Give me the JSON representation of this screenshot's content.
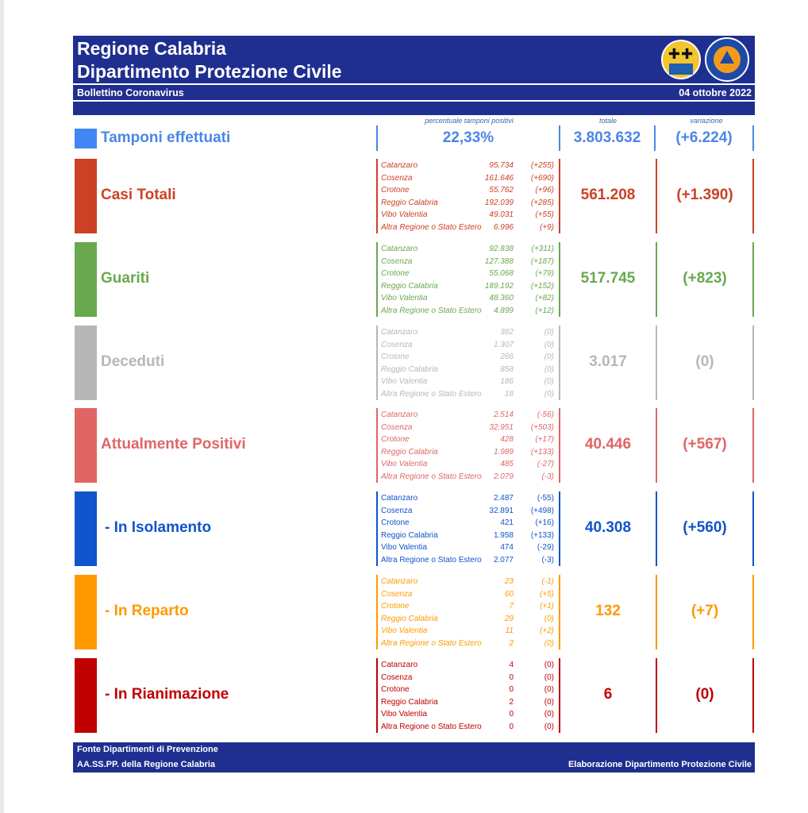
{
  "header": {
    "title_line1": "Regione Calabria",
    "title_line2": "Dipartimento Protezione Civile",
    "bulletin": "Bollettino Coronavirus",
    "date": "04 ottobre 2022"
  },
  "columns": {
    "perc": "percentuale tamponi positivi",
    "total": "totale",
    "variation": "variazione"
  },
  "tamponi": {
    "label": "Tamponi effettuati",
    "percent": "22,33%",
    "total": "3.803.632",
    "variation": "(+6.224)",
    "color": "#4a86e8"
  },
  "categories": [
    {
      "label": "Casi Totali",
      "total": "561.208",
      "variation": "(+1.390)",
      "color": "#cc4125",
      "provinces": [
        {
          "name": "Catanzaro",
          "value": "95.734",
          "delta": "(+255)"
        },
        {
          "name": "Cosenza",
          "value": "161.646",
          "delta": "(+690)"
        },
        {
          "name": "Crotone",
          "value": "55.762",
          "delta": "(+96)"
        },
        {
          "name": "Reggio Calabria",
          "value": "192.039",
          "delta": "(+285)"
        },
        {
          "name": "Vibo Valentia",
          "value": "49.031",
          "delta": "(+55)"
        },
        {
          "name": "Altra Regione o Stato Estero",
          "value": "6.996",
          "delta": "(+9)"
        }
      ]
    },
    {
      "label": "Guariti",
      "total": "517.745",
      "variation": "(+823)",
      "color": "#6aa84f",
      "provinces": [
        {
          "name": "Catanzaro",
          "value": "92.838",
          "delta": "(+311)"
        },
        {
          "name": "Cosenza",
          "value": "127.388",
          "delta": "(+187)"
        },
        {
          "name": "Crotone",
          "value": "55.068",
          "delta": "(+79)"
        },
        {
          "name": "Reggio Calabria",
          "value": "189.192",
          "delta": "(+152)"
        },
        {
          "name": "Vibo Valentia",
          "value": "48.360",
          "delta": "(+82)"
        },
        {
          "name": "Altra Regione o Stato Estero",
          "value": "4.899",
          "delta": "(+12)"
        }
      ]
    },
    {
      "label": "Deceduti",
      "total": "3.017",
      "variation": "(0)",
      "color": "#b7b7b7",
      "provinces": [
        {
          "name": "Catanzaro",
          "value": "382",
          "delta": "(0)"
        },
        {
          "name": "Cosenza",
          "value": "1.307",
          "delta": "(0)"
        },
        {
          "name": "Crotone",
          "value": "266",
          "delta": "(0)"
        },
        {
          "name": "Reggio Calabria",
          "value": "858",
          "delta": "(0)"
        },
        {
          "name": "Vibo Valentia",
          "value": "186",
          "delta": "(0)"
        },
        {
          "name": "Altra Regione o Stato Estero",
          "value": "18",
          "delta": "(0)"
        }
      ]
    },
    {
      "label": "Attualmente Positivi",
      "total": "40.446",
      "variation": "(+567)",
      "color": "#e06666",
      "provinces": [
        {
          "name": "Catanzaro",
          "value": "2.514",
          "delta": "(-56)"
        },
        {
          "name": "Cosenza",
          "value": "32.951",
          "delta": "(+503)"
        },
        {
          "name": "Crotone",
          "value": "428",
          "delta": "(+17)"
        },
        {
          "name": "Reggio Calabria",
          "value": "1.989",
          "delta": "(+133)"
        },
        {
          "name": "Vibo Valentia",
          "value": "485",
          "delta": "(-27)"
        },
        {
          "name": "Altra Regione o Stato Estero",
          "value": "2.079",
          "delta": "(-3)"
        }
      ]
    },
    {
      "label": "- In Isolamento",
      "total": "40.308",
      "variation": "(+560)",
      "color": "#1155cc",
      "provinces": [
        {
          "name": "Catanzaro",
          "value": "2.487",
          "delta": "(-55)"
        },
        {
          "name": "Cosenza",
          "value": "32.891",
          "delta": "(+498)"
        },
        {
          "name": "Crotone",
          "value": "421",
          "delta": "(+16)"
        },
        {
          "name": "Reggio Calabria",
          "value": "1.958",
          "delta": "(+133)"
        },
        {
          "name": "Vibo Valentia",
          "value": "474",
          "delta": "(-29)"
        },
        {
          "name": "Altra Regione o Stato Estero",
          "value": "2.077",
          "delta": "(-3)"
        }
      ]
    },
    {
      "label": "- In Reparto",
      "total": "132",
      "variation": "(+7)",
      "color": "#ff9900",
      "provinces": [
        {
          "name": "Catanzaro",
          "value": "23",
          "delta": "(-1)"
        },
        {
          "name": "Cosenza",
          "value": "60",
          "delta": "(+5)"
        },
        {
          "name": "Crotone",
          "value": "7",
          "delta": "(+1)"
        },
        {
          "name": "Reggio Calabria",
          "value": "29",
          "delta": "(0)"
        },
        {
          "name": "Vibo Valentia",
          "value": "11",
          "delta": "(+2)"
        },
        {
          "name": "Altra Regione o Stato Estero",
          "value": "2",
          "delta": "(0)"
        }
      ]
    },
    {
      "label": "- In Rianimazione",
      "total": "6",
      "variation": "(0)",
      "color": "#c00000",
      "provinces": [
        {
          "name": "Catanzaro",
          "value": "4",
          "delta": "(0)"
        },
        {
          "name": "Cosenza",
          "value": "0",
          "delta": "(0)"
        },
        {
          "name": "Crotone",
          "value": "0",
          "delta": "(0)"
        },
        {
          "name": "Reggio Calabria",
          "value": "2",
          "delta": "(0)"
        },
        {
          "name": "Vibo Valentia",
          "value": "0",
          "delta": "(0)"
        },
        {
          "name": "Altra Regione o Stato Estero",
          "value": "0",
          "delta": "(0)"
        }
      ]
    }
  ],
  "footer": {
    "source_line1": "Fonte Dipartimenti di Prevenzione",
    "source_line2": "AA.SS.PP.  della Regione Calabria",
    "elaboration": "Elaborazione Dipartimento Protezione Civile"
  }
}
